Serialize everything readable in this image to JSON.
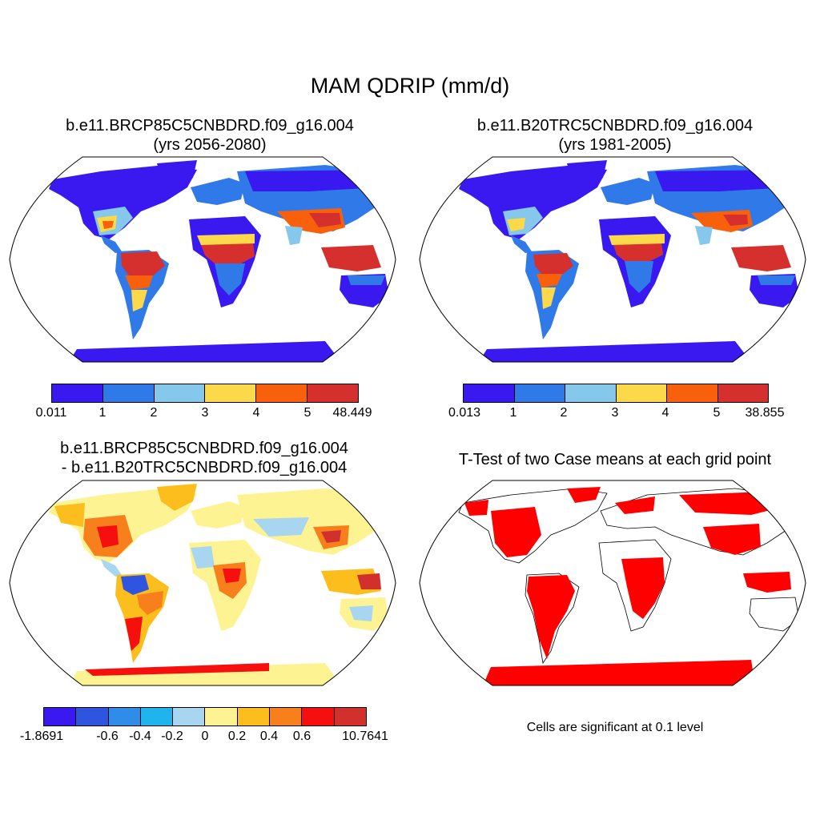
{
  "figure": {
    "title": "MAM QDRIP (mm/d)"
  },
  "panels": [
    {
      "title_line1": "b.e11.BRCP85C5CNBDRD.f09_g16.004",
      "title_line2": "(yrs 2056-2080)",
      "colorbar": {
        "colors": [
          "#3a18f0",
          "#2f7ae8",
          "#86c8ec",
          "#fbd94a",
          "#f8600c",
          "#d5302d"
        ],
        "labels": [
          "0.011",
          "1",
          "2",
          "3",
          "4",
          "5",
          "48.449"
        ]
      }
    },
    {
      "title_line1": "b.e11.B20TRC5CNBDRD.f09_g16.004",
      "title_line2": "(yrs 1981-2005)",
      "colorbar": {
        "colors": [
          "#3a18f0",
          "#2f7ae8",
          "#86c8ec",
          "#fbd94a",
          "#f8600c",
          "#d5302d"
        ],
        "labels": [
          "0.013",
          "1",
          "2",
          "3",
          "4",
          "5",
          "38.855"
        ]
      }
    },
    {
      "title_line1": "b.e11.BRCP85C5CNBDRD.f09_g16.004",
      "title_line2": "- b.e11.B20TRC5CNBDRD.f09_g16.004",
      "colorbar": {
        "colors": [
          "#3a18f0",
          "#2f55e0",
          "#2f8ce8",
          "#1fb4ee",
          "#a8d6f0",
          "#fef393",
          "#fbbe1c",
          "#f8801c",
          "#f50f0f",
          "#d2302d"
        ],
        "labels": [
          "-1.8691",
          "",
          "-0.6",
          "-0.4",
          "-0.2",
          "0",
          "0.2",
          "0.4",
          "0.6",
          "",
          "10.7641"
        ]
      }
    },
    {
      "title_line1": "T-Test of two Case means at each grid point",
      "note": "Cells are significant at 0.1 level"
    }
  ],
  "colors": {
    "land_wet": "#d5302d",
    "land_dry": "#3a18f0",
    "significant": "#ff0000"
  }
}
